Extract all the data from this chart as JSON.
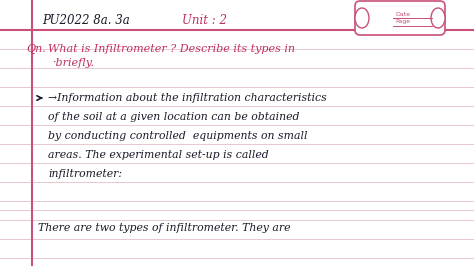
{
  "bg_color": "#ffffff",
  "line_color": "#e8c8d0",
  "margin_line_color": "#c8507a",
  "text_color_black": "#1a1a2a",
  "text_color_red": "#c03060",
  "figsize": [
    4.74,
    2.66
  ],
  "dpi": 100,
  "title_black": "PU2022 8a. 3a",
  "title_red": "Unit : 2",
  "question_line1": "Qn. What is Infiltrometer ? Describe its types in",
  "question_line2": "·briefly.",
  "body_line1": "→Information about the infiltration characteristics",
  "body_line2": "of the soil at a given location can be obtained",
  "body_line3": "by conducting controlled  equipments on small",
  "body_line4": "areas. The experimental set-up is called",
  "body_line5": "infiltrometer:",
  "footer": "There are two types of infiltrometer. They are",
  "stamp_date": "Date",
  "stamp_page": "Page"
}
